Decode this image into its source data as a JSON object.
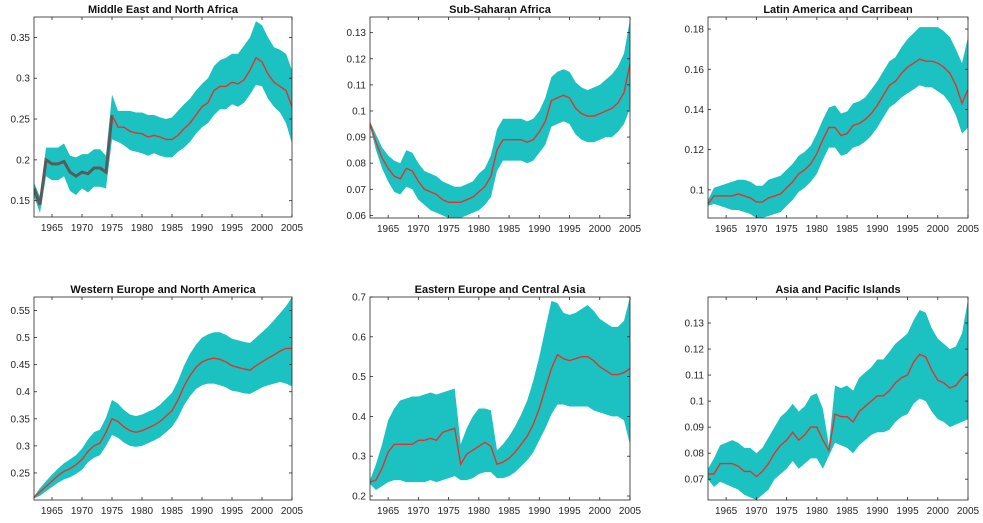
{
  "colors": {
    "band": "#1cc1c1",
    "mean_line": "#e0342a",
    "axes": "#262626",
    "background": "#ffffff"
  },
  "chart_data": [
    {
      "type": "area",
      "title": "Middle East and North Africa",
      "xlim": [
        1962,
        2005
      ],
      "ylim": [
        0.13,
        0.375
      ],
      "xticks": [
        "1965",
        "1970",
        "1975",
        "1980",
        "1985",
        "1990",
        "1995",
        "2000",
        "2005"
      ],
      "yticks": [
        "0.15",
        "0.2",
        "0.25",
        "0.3",
        "0.35"
      ],
      "x": [
        1962,
        1963,
        1964,
        1965,
        1966,
        1967,
        1968,
        1969,
        1970,
        1971,
        1972,
        1973,
        1974,
        1975,
        1976,
        1977,
        1978,
        1979,
        1980,
        1981,
        1982,
        1983,
        1984,
        1985,
        1986,
        1987,
        1988,
        1989,
        1990,
        1991,
        1992,
        1993,
        1994,
        1995,
        1996,
        1997,
        1998,
        1999,
        2000,
        2001,
        2002,
        2003,
        2004,
        2005
      ],
      "mean": [
        0.165,
        0.145,
        0.2,
        0.195,
        0.195,
        0.198,
        0.185,
        0.18,
        0.185,
        0.183,
        0.19,
        0.19,
        0.185,
        0.255,
        0.24,
        0.24,
        0.235,
        0.233,
        0.232,
        0.228,
        0.23,
        0.228,
        0.225,
        0.225,
        0.23,
        0.238,
        0.245,
        0.255,
        0.265,
        0.27,
        0.285,
        0.29,
        0.29,
        0.295,
        0.293,
        0.298,
        0.31,
        0.325,
        0.32,
        0.305,
        0.295,
        0.29,
        0.285,
        0.265
      ],
      "lower": [
        0.155,
        0.135,
        0.18,
        0.175,
        0.175,
        0.18,
        0.162,
        0.157,
        0.165,
        0.16,
        0.167,
        0.167,
        0.165,
        0.225,
        0.222,
        0.218,
        0.212,
        0.21,
        0.208,
        0.205,
        0.208,
        0.205,
        0.203,
        0.203,
        0.21,
        0.215,
        0.222,
        0.232,
        0.24,
        0.245,
        0.255,
        0.262,
        0.262,
        0.268,
        0.265,
        0.27,
        0.28,
        0.292,
        0.29,
        0.275,
        0.265,
        0.258,
        0.245,
        0.22
      ],
      "upper": [
        0.172,
        0.155,
        0.215,
        0.215,
        0.215,
        0.22,
        0.205,
        0.203,
        0.207,
        0.207,
        0.213,
        0.213,
        0.205,
        0.28,
        0.26,
        0.26,
        0.26,
        0.258,
        0.258,
        0.255,
        0.255,
        0.252,
        0.25,
        0.252,
        0.26,
        0.268,
        0.275,
        0.285,
        0.293,
        0.3,
        0.315,
        0.322,
        0.325,
        0.33,
        0.33,
        0.34,
        0.35,
        0.37,
        0.365,
        0.35,
        0.338,
        0.335,
        0.33,
        0.31
      ],
      "gray_until": 1975
    },
    {
      "type": "area",
      "title": "Sub-Saharan Africa",
      "xlim": [
        1962,
        2005
      ],
      "ylim": [
        0.059,
        0.136
      ],
      "xticks": [
        "1965",
        "1970",
        "1975",
        "1980",
        "1985",
        "1990",
        "1995",
        "2000",
        "2005"
      ],
      "yticks": [
        "0.06",
        "0.07",
        "0.08",
        "0.09",
        "0.1",
        "0.11",
        "0.12",
        "0.13"
      ],
      "x": [
        1962,
        1963,
        1964,
        1965,
        1966,
        1967,
        1968,
        1969,
        1970,
        1971,
        1972,
        1973,
        1974,
        1975,
        1976,
        1977,
        1978,
        1979,
        1980,
        1981,
        1982,
        1983,
        1984,
        1985,
        1986,
        1987,
        1988,
        1989,
        1990,
        1991,
        1992,
        1993,
        1994,
        1995,
        1996,
        1997,
        1998,
        1999,
        2000,
        2001,
        2002,
        2003,
        2004,
        2005
      ],
      "mean": [
        0.095,
        0.088,
        0.082,
        0.078,
        0.075,
        0.074,
        0.078,
        0.077,
        0.073,
        0.07,
        0.069,
        0.068,
        0.066,
        0.065,
        0.065,
        0.065,
        0.066,
        0.067,
        0.069,
        0.071,
        0.075,
        0.085,
        0.089,
        0.089,
        0.089,
        0.089,
        0.088,
        0.089,
        0.092,
        0.096,
        0.104,
        0.105,
        0.106,
        0.105,
        0.101,
        0.099,
        0.098,
        0.098,
        0.099,
        0.1,
        0.101,
        0.103,
        0.107,
        0.118
      ],
      "lower": [
        0.094,
        0.085,
        0.078,
        0.073,
        0.069,
        0.068,
        0.071,
        0.07,
        0.066,
        0.064,
        0.062,
        0.061,
        0.06,
        0.059,
        0.059,
        0.059,
        0.06,
        0.061,
        0.062,
        0.064,
        0.067,
        0.077,
        0.081,
        0.081,
        0.081,
        0.081,
        0.08,
        0.081,
        0.084,
        0.087,
        0.094,
        0.095,
        0.096,
        0.095,
        0.091,
        0.089,
        0.088,
        0.088,
        0.089,
        0.09,
        0.09,
        0.092,
        0.095,
        0.101
      ],
      "upper": [
        0.096,
        0.091,
        0.086,
        0.083,
        0.081,
        0.08,
        0.085,
        0.084,
        0.08,
        0.077,
        0.076,
        0.075,
        0.073,
        0.072,
        0.071,
        0.071,
        0.072,
        0.073,
        0.076,
        0.078,
        0.083,
        0.093,
        0.097,
        0.097,
        0.097,
        0.097,
        0.096,
        0.097,
        0.1,
        0.105,
        0.113,
        0.115,
        0.116,
        0.115,
        0.111,
        0.109,
        0.108,
        0.109,
        0.11,
        0.112,
        0.114,
        0.117,
        0.122,
        0.135
      ]
    },
    {
      "type": "area",
      "title": "Latin America and Carribean",
      "xlim": [
        1962,
        2005
      ],
      "ylim": [
        0.086,
        0.186
      ],
      "xticks": [
        "1965",
        "1970",
        "1975",
        "1980",
        "1985",
        "1990",
        "1995",
        "2000",
        "2005"
      ],
      "yticks": [
        "0.1",
        "0.12",
        "0.14",
        "0.16",
        "0.18"
      ],
      "x": [
        1962,
        1963,
        1964,
        1965,
        1966,
        1967,
        1968,
        1969,
        1970,
        1971,
        1972,
        1973,
        1974,
        1975,
        1976,
        1977,
        1978,
        1979,
        1980,
        1981,
        1982,
        1983,
        1984,
        1985,
        1986,
        1987,
        1988,
        1989,
        1990,
        1991,
        1992,
        1993,
        1994,
        1995,
        1996,
        1997,
        1998,
        1999,
        2000,
        2001,
        2002,
        2003,
        2004,
        2005
      ],
      "mean": [
        0.093,
        0.097,
        0.097,
        0.097,
        0.097,
        0.098,
        0.097,
        0.096,
        0.094,
        0.094,
        0.096,
        0.097,
        0.098,
        0.101,
        0.104,
        0.108,
        0.11,
        0.113,
        0.118,
        0.125,
        0.131,
        0.131,
        0.127,
        0.128,
        0.132,
        0.133,
        0.135,
        0.138,
        0.142,
        0.147,
        0.152,
        0.154,
        0.158,
        0.161,
        0.163,
        0.165,
        0.164,
        0.164,
        0.163,
        0.161,
        0.158,
        0.152,
        0.143,
        0.15
      ],
      "lower": [
        0.092,
        0.093,
        0.092,
        0.091,
        0.09,
        0.09,
        0.089,
        0.088,
        0.086,
        0.086,
        0.087,
        0.088,
        0.089,
        0.092,
        0.095,
        0.099,
        0.101,
        0.104,
        0.108,
        0.115,
        0.121,
        0.121,
        0.117,
        0.118,
        0.121,
        0.122,
        0.124,
        0.127,
        0.131,
        0.136,
        0.141,
        0.143,
        0.146,
        0.148,
        0.15,
        0.152,
        0.151,
        0.151,
        0.149,
        0.147,
        0.143,
        0.137,
        0.128,
        0.131
      ],
      "upper": [
        0.095,
        0.101,
        0.102,
        0.103,
        0.104,
        0.105,
        0.105,
        0.104,
        0.102,
        0.102,
        0.105,
        0.106,
        0.107,
        0.11,
        0.113,
        0.117,
        0.119,
        0.122,
        0.128,
        0.135,
        0.141,
        0.142,
        0.138,
        0.139,
        0.143,
        0.144,
        0.146,
        0.15,
        0.154,
        0.159,
        0.164,
        0.166,
        0.171,
        0.175,
        0.178,
        0.181,
        0.181,
        0.181,
        0.181,
        0.179,
        0.176,
        0.17,
        0.163,
        0.176
      ]
    },
    {
      "type": "area",
      "title": "Western Europe and North America",
      "xlim": [
        1962,
        2005
      ],
      "ylim": [
        0.2,
        0.575
      ],
      "xticks": [
        "1965",
        "1970",
        "1975",
        "1980",
        "1985",
        "1990",
        "1995",
        "2000",
        "2005"
      ],
      "yticks": [
        "0.25",
        "0.3",
        "0.35",
        "0.4",
        "0.45",
        "0.5",
        "0.55"
      ],
      "x": [
        1962,
        1963,
        1964,
        1965,
        1966,
        1967,
        1968,
        1969,
        1970,
        1971,
        1972,
        1973,
        1974,
        1975,
        1976,
        1977,
        1978,
        1979,
        1980,
        1981,
        1982,
        1983,
        1984,
        1985,
        1986,
        1987,
        1988,
        1989,
        1990,
        1991,
        1992,
        1993,
        1994,
        1995,
        1996,
        1997,
        1998,
        1999,
        2000,
        2001,
        2002,
        2003,
        2004,
        2005
      ],
      "mean": [
        0.205,
        0.215,
        0.225,
        0.235,
        0.245,
        0.253,
        0.258,
        0.265,
        0.275,
        0.29,
        0.3,
        0.305,
        0.325,
        0.35,
        0.345,
        0.335,
        0.328,
        0.325,
        0.328,
        0.333,
        0.338,
        0.345,
        0.355,
        0.365,
        0.385,
        0.41,
        0.43,
        0.445,
        0.455,
        0.46,
        0.462,
        0.46,
        0.455,
        0.448,
        0.445,
        0.442,
        0.44,
        0.448,
        0.455,
        0.462,
        0.468,
        0.475,
        0.48,
        0.48
      ],
      "lower": [
        0.203,
        0.208,
        0.216,
        0.224,
        0.232,
        0.238,
        0.242,
        0.248,
        0.256,
        0.27,
        0.278,
        0.283,
        0.3,
        0.32,
        0.315,
        0.306,
        0.3,
        0.298,
        0.3,
        0.305,
        0.31,
        0.316,
        0.325,
        0.335,
        0.352,
        0.375,
        0.392,
        0.405,
        0.412,
        0.415,
        0.415,
        0.412,
        0.408,
        0.402,
        0.4,
        0.397,
        0.396,
        0.402,
        0.408,
        0.412,
        0.415,
        0.418,
        0.415,
        0.41
      ],
      "upper": [
        0.207,
        0.222,
        0.235,
        0.247,
        0.258,
        0.268,
        0.275,
        0.283,
        0.295,
        0.312,
        0.325,
        0.33,
        0.352,
        0.385,
        0.378,
        0.366,
        0.358,
        0.355,
        0.358,
        0.363,
        0.368,
        0.376,
        0.387,
        0.398,
        0.42,
        0.448,
        0.47,
        0.487,
        0.5,
        0.506,
        0.51,
        0.51,
        0.505,
        0.498,
        0.495,
        0.492,
        0.49,
        0.5,
        0.51,
        0.52,
        0.532,
        0.545,
        0.558,
        0.575
      ]
    },
    {
      "type": "area",
      "title": "Eastern Europe and Central Asia",
      "xlim": [
        1962,
        2005
      ],
      "ylim": [
        0.19,
        0.7
      ],
      "xticks": [
        "1965",
        "1970",
        "1975",
        "1980",
        "1985",
        "1990",
        "1995",
        "2000",
        "2005"
      ],
      "yticks": [
        "0.2",
        "0.3",
        "0.4",
        "0.5",
        "0.6",
        "0.7"
      ],
      "x": [
        1962,
        1963,
        1964,
        1965,
        1966,
        1967,
        1968,
        1969,
        1970,
        1971,
        1972,
        1973,
        1974,
        1975,
        1976,
        1977,
        1978,
        1979,
        1980,
        1981,
        1982,
        1983,
        1984,
        1985,
        1986,
        1987,
        1988,
        1989,
        1990,
        1991,
        1992,
        1993,
        1994,
        1995,
        1996,
        1997,
        1998,
        1999,
        2000,
        2001,
        2002,
        2003,
        2004,
        2005
      ],
      "mean": [
        0.235,
        0.24,
        0.27,
        0.31,
        0.33,
        0.33,
        0.33,
        0.33,
        0.34,
        0.34,
        0.345,
        0.34,
        0.36,
        0.365,
        0.37,
        0.28,
        0.305,
        0.315,
        0.325,
        0.335,
        0.325,
        0.28,
        0.285,
        0.295,
        0.31,
        0.33,
        0.35,
        0.38,
        0.42,
        0.47,
        0.52,
        0.555,
        0.545,
        0.54,
        0.545,
        0.55,
        0.55,
        0.54,
        0.525,
        0.515,
        0.505,
        0.505,
        0.51,
        0.52
      ],
      "lower": [
        0.23,
        0.215,
        0.225,
        0.235,
        0.24,
        0.24,
        0.235,
        0.235,
        0.235,
        0.235,
        0.24,
        0.235,
        0.24,
        0.245,
        0.25,
        0.24,
        0.24,
        0.245,
        0.255,
        0.26,
        0.26,
        0.245,
        0.245,
        0.25,
        0.26,
        0.275,
        0.29,
        0.31,
        0.34,
        0.37,
        0.405,
        0.43,
        0.43,
        0.425,
        0.425,
        0.425,
        0.425,
        0.415,
        0.41,
        0.405,
        0.4,
        0.4,
        0.39,
        0.33
      ],
      "upper": [
        0.24,
        0.28,
        0.33,
        0.39,
        0.42,
        0.44,
        0.445,
        0.45,
        0.45,
        0.455,
        0.46,
        0.455,
        0.46,
        0.465,
        0.47,
        0.33,
        0.37,
        0.4,
        0.42,
        0.42,
        0.415,
        0.315,
        0.33,
        0.35,
        0.375,
        0.405,
        0.44,
        0.49,
        0.55,
        0.62,
        0.69,
        0.685,
        0.66,
        0.655,
        0.66,
        0.67,
        0.68,
        0.665,
        0.645,
        0.635,
        0.625,
        0.625,
        0.64,
        0.7
      ]
    },
    {
      "type": "area",
      "title": "Asia and Pacific Islands",
      "xlim": [
        1962,
        2005
      ],
      "ylim": [
        0.062,
        0.14
      ],
      "xticks": [
        "1965",
        "1970",
        "1975",
        "1980",
        "1985",
        "1990",
        "1995",
        "2000",
        "2005"
      ],
      "yticks": [
        "0.07",
        "0.08",
        "0.09",
        "0.1",
        "0.11",
        "0.12",
        "0.13"
      ],
      "x": [
        1962,
        1963,
        1964,
        1965,
        1966,
        1967,
        1968,
        1969,
        1970,
        1971,
        1972,
        1973,
        1974,
        1975,
        1976,
        1977,
        1978,
        1979,
        1980,
        1981,
        1982,
        1983,
        1984,
        1985,
        1986,
        1987,
        1988,
        1989,
        1990,
        1991,
        1992,
        1993,
        1994,
        1995,
        1996,
        1997,
        1998,
        1999,
        2000,
        2001,
        2002,
        2003,
        2004,
        2005
      ],
      "mean": [
        0.072,
        0.072,
        0.076,
        0.076,
        0.076,
        0.075,
        0.073,
        0.073,
        0.071,
        0.073,
        0.076,
        0.08,
        0.083,
        0.085,
        0.088,
        0.085,
        0.087,
        0.09,
        0.09,
        0.085,
        0.081,
        0.095,
        0.094,
        0.094,
        0.092,
        0.096,
        0.098,
        0.1,
        0.102,
        0.102,
        0.104,
        0.107,
        0.109,
        0.11,
        0.115,
        0.118,
        0.117,
        0.112,
        0.108,
        0.107,
        0.105,
        0.106,
        0.109,
        0.111
      ],
      "lower": [
        0.07,
        0.067,
        0.069,
        0.068,
        0.067,
        0.066,
        0.064,
        0.063,
        0.062,
        0.064,
        0.066,
        0.07,
        0.072,
        0.074,
        0.077,
        0.074,
        0.076,
        0.078,
        0.078,
        0.074,
        0.079,
        0.084,
        0.083,
        0.082,
        0.08,
        0.083,
        0.085,
        0.087,
        0.088,
        0.088,
        0.089,
        0.092,
        0.094,
        0.095,
        0.099,
        0.101,
        0.1,
        0.096,
        0.093,
        0.092,
        0.09,
        0.091,
        0.092,
        0.093
      ],
      "upper": [
        0.074,
        0.078,
        0.083,
        0.084,
        0.085,
        0.084,
        0.082,
        0.082,
        0.08,
        0.082,
        0.086,
        0.09,
        0.094,
        0.096,
        0.099,
        0.096,
        0.098,
        0.102,
        0.103,
        0.097,
        0.083,
        0.106,
        0.105,
        0.106,
        0.104,
        0.109,
        0.111,
        0.113,
        0.116,
        0.116,
        0.119,
        0.122,
        0.124,
        0.126,
        0.131,
        0.135,
        0.134,
        0.128,
        0.124,
        0.122,
        0.12,
        0.121,
        0.126,
        0.139
      ]
    }
  ]
}
